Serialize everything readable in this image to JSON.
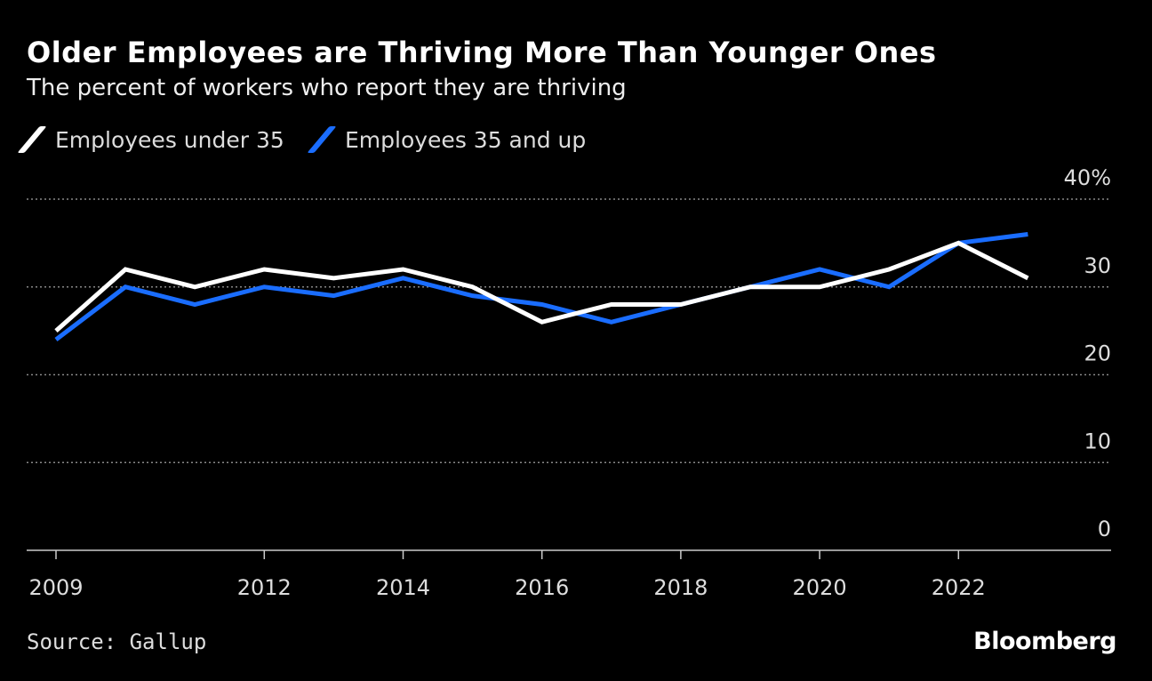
{
  "chart_data": {
    "type": "line",
    "title": "Older Employees are Thriving More Than Younger Ones",
    "subtitle": "The percent of workers who report they are thriving",
    "x": [
      2009,
      2010,
      2011,
      2012,
      2013,
      2014,
      2015,
      2016,
      2017,
      2018,
      2019,
      2020,
      2021,
      2022,
      2023
    ],
    "series": [
      {
        "name": "Employees under 35",
        "color": "#ffffff",
        "values": [
          25,
          32,
          30,
          32,
          31,
          32,
          30,
          26,
          28,
          28,
          30,
          30,
          32,
          35,
          31
        ]
      },
      {
        "name": "Employees 35 and up",
        "color": "#1a6dff",
        "values": [
          24,
          30,
          28,
          30,
          29,
          31,
          29,
          28,
          26,
          28,
          30,
          32,
          30,
          35,
          36
        ]
      }
    ],
    "ylim": [
      0,
      40
    ],
    "y_ticks": [
      "0",
      "10",
      "20",
      "30",
      "40%"
    ],
    "y_tick_values": [
      0,
      10,
      20,
      30,
      40
    ],
    "x_ticks": [
      "2009",
      "2012",
      "2014",
      "2016",
      "2018",
      "2020",
      "2022"
    ],
    "x_tick_values": [
      2009,
      2012,
      2014,
      2016,
      2018,
      2020,
      2022
    ],
    "xlim": [
      2008.6,
      2024.2
    ],
    "grid": true,
    "legend": "top-left",
    "source": "Source: Gallup",
    "brand": "Bloomberg"
  }
}
